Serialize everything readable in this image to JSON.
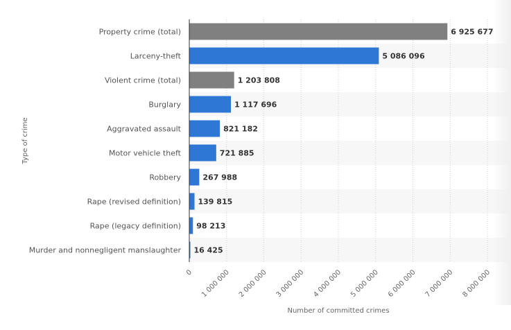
{
  "chart_data": {
    "type": "bar",
    "orientation": "horizontal",
    "title": "",
    "xlabel": "Number of committed crimes",
    "ylabel": "Type of crime",
    "xlim": [
      0,
      8000000
    ],
    "grid": true,
    "legend": "none",
    "x_ticks": [
      0,
      1000000,
      2000000,
      3000000,
      4000000,
      5000000,
      6000000,
      7000000,
      8000000
    ],
    "x_tick_labels": [
      "0",
      "1 000 000",
      "2 000 000",
      "3 000 000",
      "4 000 000",
      "5 000 000",
      "6 000 000",
      "7 000 000",
      "8 000 000"
    ],
    "categories": [
      "Property crime (total)",
      "Larceny-theft",
      "Violent crime (total)",
      "Burglary",
      "Aggravated assault",
      "Motor vehicle theft",
      "Robbery",
      "Rape (revised definition)",
      "Rape (legacy definition)",
      "Murder and nonnegligent manslaughter"
    ],
    "values": [
      6925677,
      5086096,
      1203808,
      1117696,
      821182,
      721885,
      267988,
      139815,
      98213,
      16425
    ],
    "value_labels": [
      "6 925 677",
      "5 086 096",
      "1 203 808",
      "1 117 696",
      "821 182",
      "721 885",
      "267 988",
      "139 815",
      "98 213",
      "16 425"
    ],
    "bar_colors": [
      "#808080",
      "#2f77d4",
      "#808080",
      "#2f77d4",
      "#2f77d4",
      "#2f77d4",
      "#2f77d4",
      "#2f77d4",
      "#2f77d4",
      "#2f77d4"
    ]
  }
}
